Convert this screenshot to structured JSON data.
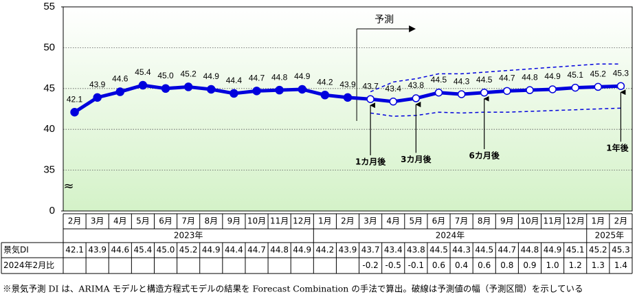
{
  "chart_data": {
    "type": "line",
    "categories": [
      "2月",
      "3月",
      "4月",
      "5月",
      "6月",
      "7月",
      "8月",
      "9月",
      "10月",
      "11月",
      "12月",
      "1月",
      "2月",
      "3月",
      "4月",
      "5月",
      "6月",
      "7月",
      "8月",
      "9月",
      "10月",
      "11月",
      "12月",
      "1月",
      "2月"
    ],
    "year_groups": [
      {
        "label": "2023年",
        "months": 11
      },
      {
        "label": "2024年",
        "months": 12
      },
      {
        "label": "2025年",
        "months": 2
      }
    ],
    "series": [
      {
        "name": "景気DI",
        "color": "#0000dd",
        "values": [
          42.1,
          43.9,
          44.6,
          45.4,
          45.0,
          45.2,
          44.9,
          44.4,
          44.7,
          44.8,
          44.9,
          44.2,
          43.9,
          43.7,
          43.4,
          43.8,
          44.5,
          44.3,
          44.5,
          44.7,
          44.8,
          44.9,
          45.1,
          45.2,
          45.3
        ],
        "value_labels": [
          "42.1",
          "43.9",
          "44.6",
          "45.4",
          "45.0",
          "45.2",
          "44.9",
          "44.4",
          "44.7",
          "44.8",
          "44.9",
          "44.2",
          "43.9",
          "43.7",
          "43.4",
          "43.8",
          "44.5",
          "44.3",
          "44.5",
          "44.7",
          "44.8",
          "44.9",
          "45.1",
          "45.2",
          "45.3"
        ]
      }
    ],
    "interval": {
      "color": "#0000dd",
      "upper": [
        null,
        null,
        null,
        null,
        null,
        null,
        null,
        null,
        null,
        null,
        null,
        null,
        null,
        44.6,
        45.8,
        46.2,
        46.8,
        46.8,
        47.0,
        47.2,
        47.4,
        47.6,
        47.8,
        48.0,
        48.0
      ],
      "lower": [
        null,
        null,
        null,
        null,
        null,
        null,
        null,
        null,
        null,
        null,
        null,
        null,
        null,
        42.0,
        41.6,
        41.7,
        42.1,
        42.0,
        42.1,
        42.1,
        42.2,
        42.3,
        42.4,
        42.5,
        42.6
      ]
    },
    "forecast": {
      "label": "予測",
      "from_index": 13
    },
    "annotations": [
      {
        "text": "1カ月後",
        "index": 13
      },
      {
        "text": "3カ月後",
        "index": 15
      },
      {
        "text": "6カ月後",
        "index": 18
      },
      {
        "text": "1年後",
        "index": 24
      }
    ],
    "ylim": [
      0,
      55
    ],
    "yticks": [
      0,
      35,
      40,
      45,
      50,
      55
    ],
    "axis_break": [
      0,
      35
    ],
    "grid": true
  },
  "table": {
    "row_labels": [
      "景気DI",
      "2024年2月比"
    ],
    "change": [
      null,
      null,
      null,
      null,
      null,
      null,
      null,
      null,
      null,
      null,
      null,
      null,
      null,
      "-0.2",
      "-0.5",
      "-0.1",
      "0.6",
      "0.4",
      "0.6",
      "0.8",
      "0.9",
      "1.0",
      "1.2",
      "1.3",
      "1.4"
    ]
  },
  "footnote": "※景気予測 DI は、ARIMA モデルと構造方程式モデルの結果を Forecast Combination の手法で算出。破線は予測値の幅（予測区間）を示している"
}
